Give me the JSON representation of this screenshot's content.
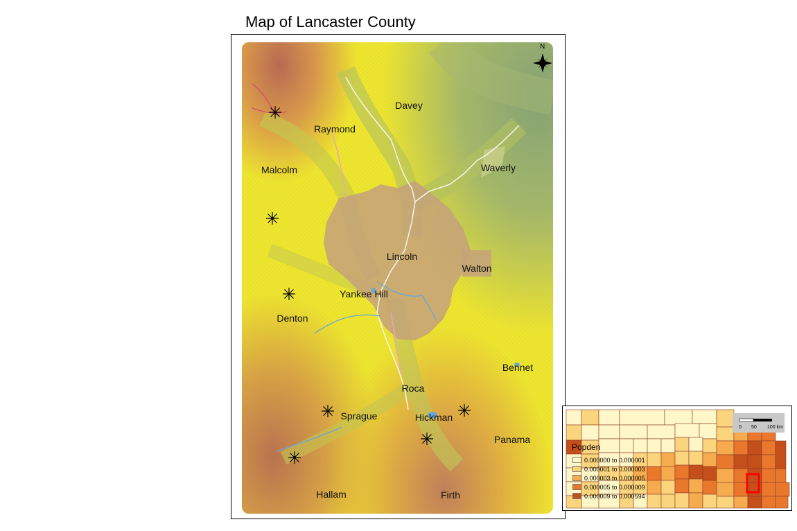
{
  "title": "Map of Lancaster County",
  "north_label": "N",
  "towns": [
    {
      "name": "Davey"
    },
    {
      "name": "Raymond"
    },
    {
      "name": "Malcolm"
    },
    {
      "name": "Waverly"
    },
    {
      "name": "Lincoln"
    },
    {
      "name": "Walton"
    },
    {
      "name": "Yankee Hill"
    },
    {
      "name": "Denton"
    },
    {
      "name": "Bennet"
    },
    {
      "name": "Roca"
    },
    {
      "name": "Sprague"
    },
    {
      "name": "Hickman"
    },
    {
      "name": "Panama"
    },
    {
      "name": "Hallam"
    },
    {
      "name": "Firth"
    }
  ],
  "stations_count_icon": "asterisk-station-icon",
  "inset": {
    "legend_title": "Popden",
    "legend": [
      {
        "label": "0.000000 to 0.000001",
        "color": "#fff7c8"
      },
      {
        "label": "0.000001 to 0.000003",
        "color": "#fbd57e"
      },
      {
        "label": "0.000003 to 0.000005",
        "color": "#f6ac4e"
      },
      {
        "label": "0.000005 to 0.000009",
        "color": "#e9782c"
      },
      {
        "label": "0.000009 to 0.000594",
        "color": "#c44f1a"
      }
    ],
    "scale_labels": [
      "0",
      "50",
      "100 km"
    ],
    "highlight_color": "#ff0000"
  },
  "colors": {
    "urban": "#c4a17a",
    "water": "#6aa7d8",
    "lowland": "#9fb46a",
    "upland": "#f2ea2a",
    "high": "#c97f4a"
  }
}
